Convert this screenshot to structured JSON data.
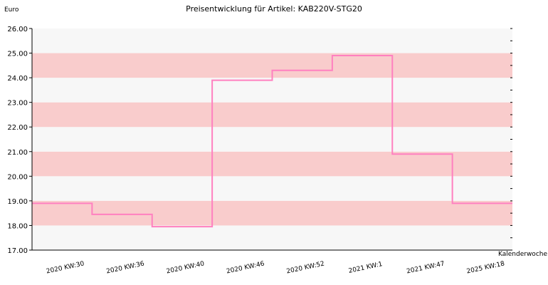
{
  "chart_data": {
    "type": "line",
    "step": true,
    "title": "Preisentwicklung für Artikel: KAB220V-STG20",
    "ylabel": "Euro",
    "xlabel": "Kalenderwoche",
    "ylim": [
      17,
      26
    ],
    "yticks": [
      "17.00",
      "18.00",
      "19.00",
      "20.00",
      "21.00",
      "22.00",
      "23.00",
      "24.00",
      "25.00",
      "26.00"
    ],
    "categories": [
      "2020 KW:30",
      "2020 KW:36",
      "2020 KW:40",
      "2020 KW:46",
      "2020 KW:52",
      "2021 KW:1",
      "2021 KW:47",
      "2025 KW:18"
    ],
    "series": [
      {
        "values": [
          18.9,
          18.45,
          17.95,
          23.9,
          24.3,
          24.9,
          20.9,
          18.9
        ]
      }
    ],
    "grid": true,
    "band_colors": [
      "#f7f7f7",
      "#f9cccc"
    ],
    "line_color": "#ff80c0"
  }
}
